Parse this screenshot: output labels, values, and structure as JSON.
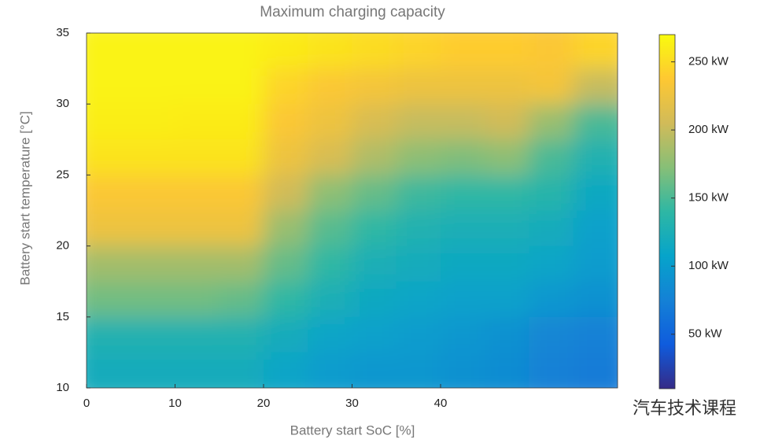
{
  "chart_data": {
    "type": "heatmap",
    "title": "Maximum charging capacity",
    "xlabel": "Battery start SoC [%]",
    "ylabel": "Battery start temperature [°C]",
    "x": [
      2.5,
      7.5,
      12.5,
      17.5,
      22.5,
      27.5,
      32.5,
      37.5,
      42.5,
      47.5,
      52.5,
      57.5
    ],
    "y": [
      33.75,
      31.25,
      28.75,
      26.25,
      23.75,
      21.25,
      18.75,
      16.25,
      13.75,
      11.25
    ],
    "values": [
      [
        265,
        265,
        265,
        265,
        260,
        255,
        250,
        245,
        240,
        240,
        235,
        245
      ],
      [
        265,
        265,
        265,
        265,
        245,
        235,
        230,
        225,
        225,
        225,
        230,
        200
      ],
      [
        262,
        262,
        260,
        260,
        235,
        225,
        210,
        200,
        200,
        205,
        180,
        150
      ],
      [
        255,
        255,
        255,
        255,
        225,
        210,
        190,
        175,
        170,
        175,
        150,
        130
      ],
      [
        235,
        235,
        235,
        235,
        205,
        175,
        160,
        145,
        140,
        140,
        135,
        115
      ],
      [
        225,
        225,
        225,
        225,
        180,
        155,
        140,
        130,
        125,
        125,
        120,
        105
      ],
      [
        185,
        185,
        185,
        185,
        160,
        140,
        125,
        120,
        115,
        115,
        110,
        100
      ],
      [
        165,
        165,
        165,
        160,
        140,
        125,
        115,
        110,
        105,
        105,
        95,
        90
      ],
      [
        130,
        130,
        130,
        130,
        120,
        110,
        105,
        100,
        95,
        90,
        80,
        75
      ],
      [
        120,
        120,
        120,
        120,
        110,
        100,
        95,
        95,
        90,
        85,
        75,
        70
      ]
    ],
    "xlim": [
      0,
      60
    ],
    "ylim": [
      10,
      35
    ],
    "xticks": [
      0,
      10,
      20,
      30,
      40
    ],
    "yticks": [
      10,
      15,
      20,
      25,
      30,
      35
    ],
    "clim": [
      10,
      270
    ],
    "cticks": [
      {
        "value": 50,
        "label": "50 kW"
      },
      {
        "value": 100,
        "label": "100 kW"
      },
      {
        "value": 150,
        "label": "150 kW"
      },
      {
        "value": 200,
        "label": "200 kW"
      },
      {
        "value": 250,
        "label": "250 kW"
      }
    ],
    "colormap": [
      "#352a87",
      "#0f5cdd",
      "#1481d6",
      "#06a4ca",
      "#2eb7a4",
      "#87bf77",
      "#d1bb59",
      "#fec832",
      "#f9fb0e"
    ],
    "watermark": "汽车技术课程"
  }
}
